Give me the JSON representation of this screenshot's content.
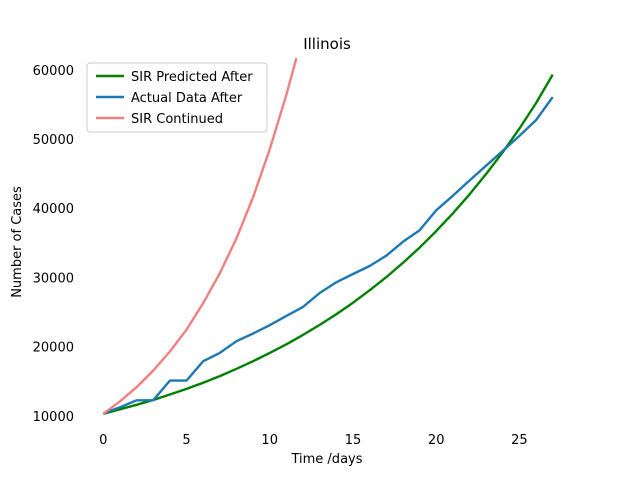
{
  "chart_data": {
    "type": "line",
    "title": "Illinois",
    "xlabel": "Time /days",
    "ylabel": "Number of Cases",
    "xlim": [
      -1.4,
      28.4
    ],
    "ylim": [
      8400,
      61700
    ],
    "xticks": [
      0,
      5,
      10,
      15,
      20,
      25
    ],
    "yticks": [
      10000,
      20000,
      30000,
      40000,
      50000,
      60000
    ],
    "legend_position": "top-left",
    "series": [
      {
        "name": "SIR Predicted After",
        "color": "#008000",
        "x": [
          0,
          1,
          2,
          3,
          4,
          5,
          6,
          7,
          8,
          9,
          10,
          11,
          12,
          13,
          14,
          15,
          16,
          17,
          18,
          19,
          20,
          21,
          22,
          23,
          24,
          25,
          26,
          27
        ],
        "y": [
          10300,
          10950,
          11600,
          12300,
          13100,
          13900,
          14800,
          15750,
          16800,
          17900,
          19100,
          20350,
          21700,
          23150,
          24700,
          26350,
          28150,
          30050,
          32100,
          34300,
          36700,
          39250,
          42000,
          44950,
          48100,
          51500,
          55200,
          59300
        ]
      },
      {
        "name": "Actual Data After",
        "color": "#1f77b4",
        "x": [
          0,
          1,
          2,
          3,
          4,
          5,
          6,
          7,
          8,
          9,
          10,
          11,
          12,
          13,
          14,
          15,
          16,
          17,
          18,
          19,
          20,
          21,
          22,
          23,
          24,
          25,
          26,
          27
        ],
        "y": [
          10350,
          11250,
          12250,
          12250,
          15100,
          15100,
          17900,
          19100,
          20800,
          21900,
          23100,
          24450,
          25750,
          27750,
          29300,
          30500,
          31650,
          33150,
          35150,
          36800,
          39700,
          41800,
          44000,
          46150,
          48300,
          50450,
          52750,
          56050
        ]
      },
      {
        "name": "SIR Continued",
        "color": "#f08080",
        "x": [
          0,
          1,
          2,
          3,
          4,
          5,
          6,
          7,
          8,
          9,
          10,
          11,
          11.6
        ],
        "y": [
          10300,
          12100,
          14150,
          16550,
          19300,
          22450,
          26300,
          30600,
          35650,
          41600,
          48500,
          56400,
          61700
        ]
      }
    ]
  }
}
